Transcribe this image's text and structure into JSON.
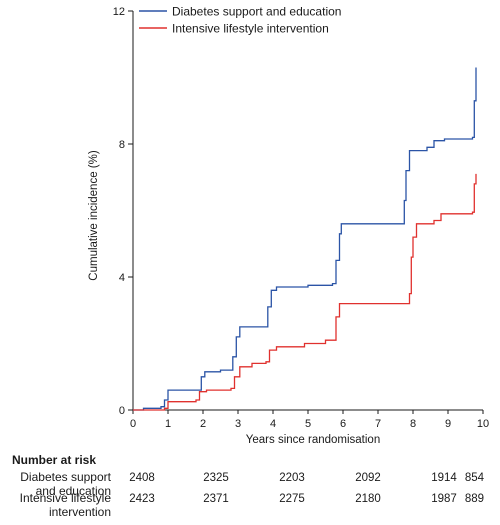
{
  "chart_data": {
    "type": "line",
    "title": "",
    "xlabel": "Years since randomisation",
    "ylabel": "Cumulative incidence (%)",
    "xlim": [
      0,
      10
    ],
    "ylim": [
      0,
      12
    ],
    "x_ticks": [
      0,
      1,
      2,
      3,
      4,
      5,
      6,
      7,
      8,
      9,
      10
    ],
    "y_ticks": [
      0,
      4,
      8,
      12
    ],
    "grid": false,
    "legend_position": "top-left",
    "series": [
      {
        "name": "Diabetes support and education",
        "color": "#2b54a6",
        "step": true,
        "points": [
          [
            0,
            0
          ],
          [
            0.3,
            0.05
          ],
          [
            0.8,
            0.1
          ],
          [
            0.9,
            0.3
          ],
          [
            1.0,
            0.6
          ],
          [
            1.9,
            0.6
          ],
          [
            1.95,
            1.0
          ],
          [
            2.05,
            1.15
          ],
          [
            2.5,
            1.2
          ],
          [
            2.8,
            1.2
          ],
          [
            2.85,
            1.6
          ],
          [
            2.95,
            2.2
          ],
          [
            3.05,
            2.5
          ],
          [
            3.8,
            2.5
          ],
          [
            3.85,
            3.1
          ],
          [
            3.95,
            3.6
          ],
          [
            4.1,
            3.7
          ],
          [
            5.0,
            3.75
          ],
          [
            5.7,
            3.8
          ],
          [
            5.8,
            4.5
          ],
          [
            5.9,
            5.3
          ],
          [
            5.95,
            5.6
          ],
          [
            7.7,
            5.6
          ],
          [
            7.75,
            6.3
          ],
          [
            7.8,
            7.2
          ],
          [
            7.9,
            7.8
          ],
          [
            8.4,
            7.9
          ],
          [
            8.6,
            8.1
          ],
          [
            8.9,
            8.15
          ],
          [
            9.7,
            8.2
          ],
          [
            9.75,
            9.3
          ],
          [
            9.8,
            10.3
          ]
        ]
      },
      {
        "name": "Intensive lifestyle intervention",
        "color": "#e0312e",
        "step": true,
        "points": [
          [
            0,
            0
          ],
          [
            0.9,
            0.05
          ],
          [
            1.0,
            0.25
          ],
          [
            1.8,
            0.3
          ],
          [
            1.9,
            0.55
          ],
          [
            2.1,
            0.6
          ],
          [
            2.8,
            0.65
          ],
          [
            2.9,
            1.0
          ],
          [
            3.05,
            1.3
          ],
          [
            3.4,
            1.4
          ],
          [
            3.8,
            1.45
          ],
          [
            3.9,
            1.8
          ],
          [
            4.1,
            1.9
          ],
          [
            4.8,
            1.9
          ],
          [
            4.9,
            2.0
          ],
          [
            5.5,
            2.1
          ],
          [
            5.8,
            2.8
          ],
          [
            5.9,
            3.2
          ],
          [
            7.7,
            3.2
          ],
          [
            7.9,
            3.5
          ],
          [
            7.95,
            4.6
          ],
          [
            8.0,
            5.2
          ],
          [
            8.1,
            5.6
          ],
          [
            8.6,
            5.7
          ],
          [
            8.8,
            5.9
          ],
          [
            9.7,
            5.95
          ],
          [
            9.75,
            6.8
          ],
          [
            9.8,
            7.1
          ]
        ]
      }
    ],
    "risk_table": {
      "title": "Number at risk",
      "times": [
        0,
        2,
        4,
        6,
        8,
        10
      ],
      "rows": [
        {
          "label_line1": "Diabetes support",
          "label_line2": "and education",
          "values": [
            "2408",
            "2325",
            "2203",
            "2092",
            "1914",
            "854"
          ]
        },
        {
          "label_line1": "Intensive lifestyle",
          "label_line2": "intervention",
          "values": [
            "2423",
            "2371",
            "2275",
            "2180",
            "1987",
            "889"
          ]
        }
      ]
    }
  }
}
